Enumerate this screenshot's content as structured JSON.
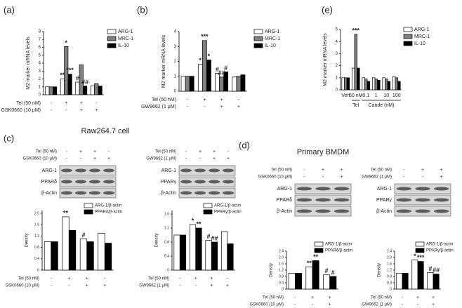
{
  "chart_data": [
    {
      "type": "bar",
      "panel": "(a)",
      "ylabel": "M2 marker mRNA levels",
      "categories": [
        null,
        null,
        null,
        null
      ],
      "series": [
        {
          "name": "ARG-1",
          "color": "#ffffff",
          "values": [
            1,
            2,
            1.6,
            1.1
          ]
        },
        {
          "name": "MRC-1",
          "color": "#808080",
          "values": [
            1,
            6.1,
            3.8,
            1.4
          ]
        },
        {
          "name": "IL-10",
          "color": "#000000",
          "values": [
            1,
            2.6,
            1.1,
            1.1
          ]
        }
      ],
      "ylim": [
        0,
        8
      ],
      "yticks": [
        0,
        1,
        2,
        3,
        4,
        5,
        6,
        7,
        8
      ],
      "conditions": [
        {
          "label": "Tel (50 nM)",
          "marks": [
            "-",
            "+",
            "+",
            "-"
          ]
        },
        {
          "label": "GSK0660 (10 μM)",
          "marks": [
            "-",
            "-",
            "+",
            "+"
          ]
        }
      ],
      "annotations": [
        {
          "text": "**",
          "series": 0,
          "category": 1
        },
        {
          "text": "*",
          "series": 1,
          "category": 1
        },
        {
          "text": "***",
          "series": 2,
          "category": 1
        },
        {
          "text": "#",
          "series": 0,
          "category": 2
        },
        {
          "text": "##",
          "series": 2,
          "category": 2
        }
      ]
    },
    {
      "type": "bar",
      "panel": "(b)",
      "ylabel": "M2 marker mRNA levels",
      "categories": [
        null,
        null,
        null,
        null
      ],
      "series": [
        {
          "name": "ARG-1",
          "color": "#ffffff",
          "values": [
            1,
            1.8,
            1.2,
            0.95
          ]
        },
        {
          "name": "MRC-1",
          "color": "#808080",
          "values": [
            1,
            3.4,
            0.95,
            1
          ]
        },
        {
          "name": "IL-10",
          "color": "#000000",
          "values": [
            1,
            2.1,
            1.3,
            1.1
          ]
        }
      ],
      "ylim": [
        0,
        4
      ],
      "yticks": [
        0,
        1,
        2,
        3,
        4
      ],
      "conditions": [
        {
          "label": "Tel (50 nM)",
          "marks": [
            "-",
            "+",
            "+",
            "-"
          ]
        },
        {
          "label": "GW9662 (1 μM)",
          "marks": [
            "-",
            "-",
            "+",
            "+"
          ]
        }
      ],
      "annotations": [
        {
          "text": "*",
          "series": 0,
          "category": 1
        },
        {
          "text": "***",
          "series": 1,
          "category": 1
        },
        {
          "text": "*",
          "series": 2,
          "category": 1
        },
        {
          "text": "#",
          "series": 0,
          "category": 2
        },
        {
          "text": "##",
          "series": 1,
          "category": 2
        },
        {
          "text": "#",
          "series": 2,
          "category": 2
        }
      ]
    },
    {
      "type": "bar",
      "panel": "(e)",
      "ylabel": "M2 marker mRNA levels",
      "categories": [
        "Veh",
        "50 nM",
        "0.1",
        "1",
        "10",
        "100"
      ],
      "xgroups": [
        {
          "label": "Tel",
          "from": 1,
          "to": 1
        },
        {
          "label": "Cande (nM)",
          "from": 2,
          "to": 5
        }
      ],
      "series": [
        {
          "name": "ARG-1",
          "color": "#ffffff",
          "values": [
            1,
            1.8,
            1,
            1,
            1,
            1.1
          ]
        },
        {
          "name": "MRC-1",
          "color": "#808080",
          "values": [
            1,
            4.6,
            0.9,
            0.9,
            0.9,
            1
          ]
        },
        {
          "name": "IL-10",
          "color": "#000000",
          "values": [
            1,
            1.8,
            0.7,
            0.8,
            0.7,
            0.7
          ]
        }
      ],
      "ylim": [
        0,
        5
      ],
      "yticks": [
        0,
        1,
        2,
        3,
        4,
        5
      ],
      "annotations": [
        {
          "text": "***",
          "series": 1,
          "category": 1
        }
      ]
    },
    {
      "type": "bar",
      "panel": "(c)",
      "title": "Raw264.7 cell",
      "ylabel": "Density",
      "categories": [
        null,
        null,
        null,
        null
      ],
      "series": [
        {
          "name": "ARG-1/β-actin",
          "color": "#ffffff",
          "values": [
            1,
            1.88,
            1.1,
            1.3
          ]
        },
        {
          "name": "PPARδ/β-actin",
          "color": "#000000",
          "values": [
            1,
            1.4,
            1,
            0.95
          ]
        }
      ],
      "ylim": [
        0,
        2.1
      ],
      "yticks": [
        0,
        0.4,
        0.8,
        1.2,
        1.6,
        {
          "value": 2,
          "label": "2.0"
        }
      ],
      "conditions": [
        {
          "label": "Tel (50 nM)",
          "marks": [
            "-",
            "+",
            "+",
            "-"
          ]
        },
        {
          "label": "GSK0660 (10 μM)",
          "marks": [
            "-",
            "-",
            "+",
            "+"
          ]
        }
      ],
      "blot_rows": [
        "ARG-1",
        "PPARδ",
        "β-Actin"
      ],
      "annotations": [
        {
          "text": "**",
          "series": 0,
          "category": 1
        },
        {
          "text": "#",
          "series": 0,
          "category": 2
        }
      ]
    },
    {
      "type": "bar",
      "ylabel": "Density",
      "categories": [
        null,
        null,
        null,
        null
      ],
      "series": [
        {
          "name": "ARG-1/β-actin",
          "color": "#ffffff",
          "values": [
            1,
            1.3,
            0.85,
            1.1
          ]
        },
        {
          "name": "PPARγ/β-actin",
          "color": "#000000",
          "values": [
            1,
            1.2,
            0.8,
            0.75
          ]
        }
      ],
      "ylim": [
        0,
        1.7
      ],
      "yticks": [
        0,
        0.4,
        0.8,
        1.2,
        1.6
      ],
      "conditions": [
        {
          "label": "Tel (50 nM)",
          "marks": [
            "-",
            "+",
            "+",
            "-"
          ]
        },
        {
          "label": "GW9662 (1 μM)",
          "marks": [
            "-",
            "-",
            "+",
            "+"
          ]
        }
      ],
      "blot_rows": [
        "ARG-1",
        "PPARγ",
        "β-Actin"
      ],
      "annotations": [
        {
          "text": "*",
          "series": 0,
          "category": 1
        },
        {
          "text": "**",
          "series": 1,
          "category": 1
        },
        {
          "text": "#",
          "series": 0,
          "category": 2
        },
        {
          "text": "##",
          "series": 1,
          "category": 2
        }
      ]
    },
    {
      "type": "bar",
      "panel": "(d)",
      "title": "Primary BMDM",
      "ylabel": "Density",
      "categories": [
        null,
        null,
        null
      ],
      "series": [
        {
          "name": "ARG-1/β-actin",
          "color": "#ffffff",
          "values": [
            1,
            1.4,
            0.9
          ]
        },
        {
          "name": "PPARδ/β-actin",
          "color": "#000000",
          "values": [
            1,
            1.8,
            0.8
          ]
        }
      ],
      "ylim": [
        0,
        2.4
      ],
      "yticks": [
        0,
        0.4,
        0.8,
        1.2,
        1.6,
        {
          "value": 2,
          "label": "2.0"
        },
        2.4
      ],
      "conditions": [
        {
          "label": "Tel (50 nM)",
          "marks": [
            "-",
            "+",
            "+"
          ]
        },
        {
          "label": "GSK0660 (10 μM)",
          "marks": [
            "-",
            "-",
            "+"
          ]
        }
      ],
      "blot_rows": [
        "ARG-1",
        "PPARδ",
        "β-Actin"
      ],
      "annotations": [
        {
          "text": "**",
          "series": 0,
          "category": 1
        },
        {
          "text": "**",
          "series": 1,
          "category": 1
        },
        {
          "text": "#",
          "series": 0,
          "category": 2
        },
        {
          "text": "#",
          "series": 1,
          "category": 2
        }
      ]
    },
    {
      "type": "bar",
      "ylabel": "Density",
      "categories": [
        null,
        null,
        null
      ],
      "series": [
        {
          "name": "ARG-1/β-actin",
          "color": "#ffffff",
          "values": [
            1,
            1.85,
            1.05
          ]
        },
        {
          "name": "PPARγ/β-actin",
          "color": "#000000",
          "values": [
            1,
            1.75,
            0.95
          ]
        }
      ],
      "ylim": [
        0,
        2.4
      ],
      "yticks": [
        0,
        0.4,
        0.8,
        1.2,
        1.6,
        {
          "value": 2,
          "label": "2.0"
        },
        2.4
      ],
      "conditions": [
        {
          "label": "Tel (50 nM)",
          "marks": [
            "-",
            "+",
            "+"
          ]
        },
        {
          "label": "GW9662 (1 μM)",
          "marks": [
            "-",
            "-",
            "+"
          ]
        }
      ],
      "blot_rows": [
        "ARG-1",
        "PPARγ",
        "β-Actin"
      ],
      "annotations": [
        {
          "text": "*",
          "series": 0,
          "category": 1
        },
        {
          "text": "***",
          "series": 1,
          "category": 1
        },
        {
          "text": "#",
          "series": 0,
          "category": 2
        },
        {
          "text": "##",
          "series": 1,
          "category": 2
        }
      ]
    }
  ]
}
